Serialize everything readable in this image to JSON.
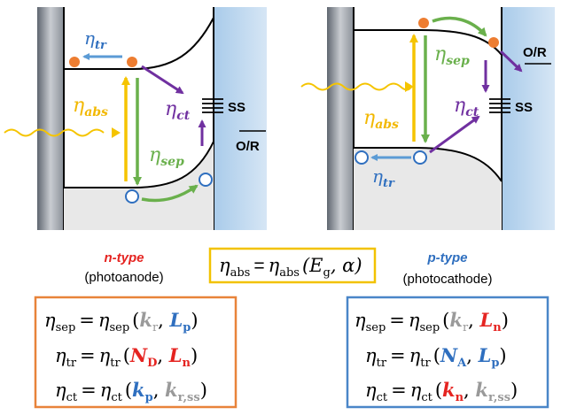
{
  "left_panel": {
    "eta_tr": {
      "sym": "η",
      "sub": "tr"
    },
    "eta_abs": {
      "sym": "η",
      "sub": "abs"
    },
    "eta_ct": {
      "sym": "η",
      "sub": "ct"
    },
    "eta_sep": {
      "sym": "η",
      "sub": "sep"
    },
    "ss_label": "SS",
    "or_label": "O/R"
  },
  "right_panel": {
    "eta_sep": {
      "sym": "η",
      "sub": "sep"
    },
    "eta_abs": {
      "sym": "η",
      "sub": "abs"
    },
    "eta_ct": {
      "sym": "η",
      "sub": "ct"
    },
    "eta_tr": {
      "sym": "η",
      "sub": "tr"
    },
    "ss_label": "SS",
    "or_label": "O/R"
  },
  "center": {
    "n_type": "n-type",
    "n_type_sub": "(photoanode)",
    "p_type": "p-type",
    "p_type_sub": "(photocathode)",
    "abs_eq": {
      "lhs_sub": "abs",
      "eq": "=",
      "rhs_sub": "abs",
      "args": "(E",
      "arg_sub": "g",
      "arg_rest": ", α)"
    }
  },
  "n_box": {
    "sep": {
      "lhs": "sep",
      "k": "k",
      "k_sub": "r",
      "L": "L",
      "L_sub": "p"
    },
    "tr": {
      "lhs": "tr",
      "N": "N",
      "N_sub": "D",
      "L": "L",
      "L_sub": "n"
    },
    "ct": {
      "lhs": "ct",
      "k": "k",
      "k_sub": "p",
      "k2": "k",
      "k2_sub": "r,ss"
    }
  },
  "p_box": {
    "sep": {
      "lhs": "sep",
      "k": "k",
      "k_sub": "r",
      "L": "L",
      "L_sub": "n"
    },
    "tr": {
      "lhs": "tr",
      "N": "N",
      "N_sub": "A",
      "L": "L",
      "L_sub": "p"
    },
    "ct": {
      "lhs": "ct",
      "k": "k",
      "k_sub": "n",
      "k2": "k",
      "k2_sub": "r,ss"
    }
  },
  "colors": {
    "orange_box": "#e8833a",
    "blue_box": "#4a86c8",
    "yellow_box": "#f2c200",
    "red": "#e52421",
    "blue": "#2f6fbf",
    "gray": "#9a9a9a",
    "purple": "#7030a0",
    "green": "#6ab04c",
    "arrow_blue": "#5b9bd5",
    "yellow_arrow": "#f5c400",
    "electrolyte": "#9bc3e6"
  }
}
